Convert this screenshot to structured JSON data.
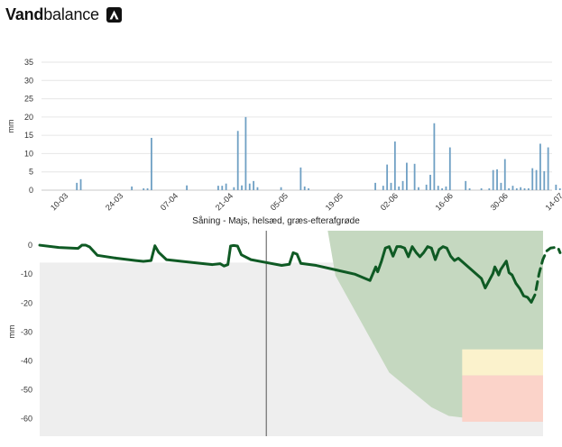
{
  "header": {
    "title_bold": "Vand",
    "title_rest": "balance",
    "logo_icon": "mountain-logo-icon"
  },
  "colors": {
    "bars": "#6fa0c4",
    "water_line": "#0f5a24",
    "forecast_zone": "#c5d8c0",
    "below_zone": "#eeeeee",
    "warning_yellow": "#fbf2cc",
    "critical_red": "#fbd3c9",
    "today_line": "#555555"
  },
  "chart_data": [
    {
      "type": "bar",
      "ylabel": "mm",
      "ylim": [
        0,
        35
      ],
      "yticks": [
        0,
        5,
        10,
        15,
        20,
        25,
        30,
        35
      ],
      "grid": true,
      "xlim": [
        -5,
        125
      ],
      "xticks": [
        {
          "day": 0,
          "label": "10-03"
        },
        {
          "day": 14,
          "label": "24-03"
        },
        {
          "day": 28,
          "label": "07-04"
        },
        {
          "day": 42,
          "label": "21-04"
        },
        {
          "day": 56,
          "label": "05-05"
        },
        {
          "day": 70,
          "label": "19-05"
        },
        {
          "day": 84,
          "label": "02-06"
        },
        {
          "day": 98,
          "label": "16-06"
        },
        {
          "day": 112,
          "label": "30-06"
        },
        {
          "day": 126,
          "label": "14-07"
        }
      ],
      "bars": [
        {
          "day": 4,
          "value": 2
        },
        {
          "day": 5,
          "value": 3
        },
        {
          "day": 18,
          "value": 1
        },
        {
          "day": 21,
          "value": 0.5
        },
        {
          "day": 22,
          "value": 0.5
        },
        {
          "day": 23,
          "value": 14.3
        },
        {
          "day": 32,
          "value": 1.3
        },
        {
          "day": 40,
          "value": 1.2
        },
        {
          "day": 41,
          "value": 1.2
        },
        {
          "day": 42,
          "value": 1.8
        },
        {
          "day": 44,
          "value": 0.8
        },
        {
          "day": 45,
          "value": 16.2
        },
        {
          "day": 46,
          "value": 1.3
        },
        {
          "day": 47,
          "value": 20
        },
        {
          "day": 48,
          "value": 1.8
        },
        {
          "day": 49,
          "value": 2.5
        },
        {
          "day": 50,
          "value": 0.8
        },
        {
          "day": 56,
          "value": 0.8
        },
        {
          "day": 61,
          "value": 6.2
        },
        {
          "day": 62,
          "value": 1.0
        },
        {
          "day": 63,
          "value": 0.5
        },
        {
          "day": 80,
          "value": 2
        },
        {
          "day": 82,
          "value": 1.2
        },
        {
          "day": 83,
          "value": 7
        },
        {
          "day": 84,
          "value": 2
        },
        {
          "day": 85,
          "value": 13.3
        },
        {
          "day": 86,
          "value": 1.0
        },
        {
          "day": 87,
          "value": 2.5
        },
        {
          "day": 88,
          "value": 7.5
        },
        {
          "day": 90,
          "value": 7.2
        },
        {
          "day": 91,
          "value": 0.8
        },
        {
          "day": 93,
          "value": 1.5
        },
        {
          "day": 94,
          "value": 4.2
        },
        {
          "day": 95,
          "value": 18.3
        },
        {
          "day": 96,
          "value": 1.2
        },
        {
          "day": 97,
          "value": 0.5
        },
        {
          "day": 98,
          "value": 1.0
        },
        {
          "day": 99,
          "value": 11.7
        },
        {
          "day": 103,
          "value": 2.5
        },
        {
          "day": 104,
          "value": 0.5
        },
        {
          "day": 107,
          "value": 0.5
        },
        {
          "day": 109,
          "value": 0.5
        },
        {
          "day": 110,
          "value": 5.5
        },
        {
          "day": 111,
          "value": 5.7
        },
        {
          "day": 112,
          "value": 2
        },
        {
          "day": 113,
          "value": 8.5
        },
        {
          "day": 114,
          "value": 0.5
        },
        {
          "day": 115,
          "value": 1.2
        },
        {
          "day": 116,
          "value": 0.5
        },
        {
          "day": 117,
          "value": 0.8
        },
        {
          "day": 118,
          "value": 0.5
        },
        {
          "day": 119,
          "value": 0.5
        },
        {
          "day": 120,
          "value": 6
        },
        {
          "day": 121,
          "value": 5.5
        },
        {
          "day": 122,
          "value": 12.7
        },
        {
          "day": 123,
          "value": 5.2
        },
        {
          "day": 124,
          "value": 11.7
        },
        {
          "day": 126,
          "value": 1.5
        },
        {
          "day": 127,
          "value": 0.5
        }
      ]
    },
    {
      "type": "area",
      "title": "Såning - Majs,  helsæd, græs-efterafgrøde",
      "ylabel": "mm",
      "ylim": [
        -66,
        5
      ],
      "yticks": [
        0,
        -10,
        -20,
        -30,
        -40,
        -50,
        -60
      ],
      "xlim": [
        -5,
        127
      ],
      "today_day": 54,
      "below_zone_top": -6,
      "series": [
        {
          "name": "",
          "style": "solid",
          "points": [
            [
              -5,
              0
            ],
            [
              0,
              -0.8
            ],
            [
              5,
              -1.1
            ],
            [
              6,
              0
            ],
            [
              7,
              0
            ],
            [
              8,
              -0.6
            ],
            [
              10,
              -3.5
            ],
            [
              15,
              -4.5
            ],
            [
              20,
              -5.3
            ],
            [
              22,
              -5.6
            ],
            [
              24,
              -5.3
            ],
            [
              25,
              -0.2
            ],
            [
              26,
              -2.5
            ],
            [
              28,
              -5
            ],
            [
              35,
              -6
            ],
            [
              40,
              -6.7
            ],
            [
              42,
              -6.4
            ],
            [
              43,
              -7.2
            ],
            [
              44,
              -6.7
            ],
            [
              44.7,
              -0.3
            ],
            [
              45.5,
              -0.1
            ],
            [
              46.5,
              -0.3
            ],
            [
              47.5,
              -3.3
            ],
            [
              50,
              -5
            ],
            [
              54,
              -6
            ],
            [
              58,
              -7
            ],
            [
              60,
              -6.6
            ],
            [
              61,
              -2.6
            ],
            [
              62,
              -3.1
            ],
            [
              63,
              -6.3
            ],
            [
              67,
              -7
            ],
            [
              72,
              -8.5
            ],
            [
              77,
              -10
            ],
            [
              81,
              -12.2
            ],
            [
              82.5,
              -7.5
            ],
            [
              83,
              -9.2
            ],
            [
              84,
              -5.5
            ],
            [
              85,
              -1
            ],
            [
              86,
              -0.5
            ],
            [
              87,
              -3.8
            ],
            [
              88,
              -0.5
            ],
            [
              89,
              -0.5
            ],
            [
              90,
              -1
            ],
            [
              91,
              -4
            ],
            [
              92,
              -0.5
            ],
            [
              93,
              -2.5
            ],
            [
              94,
              -4
            ],
            [
              95,
              -2.5
            ],
            [
              96,
              -0.5
            ],
            [
              97,
              -1
            ],
            [
              98,
              -5
            ],
            [
              99,
              -1.5
            ],
            [
              100,
              -0.5
            ],
            [
              101,
              -1
            ],
            [
              102,
              -3.8
            ],
            [
              103,
              -5.3
            ],
            [
              104,
              -4.5
            ],
            [
              107,
              -8
            ],
            [
              110,
              -11.5
            ],
            [
              111,
              -14.8
            ],
            [
              113,
              -9.8
            ],
            [
              113.5,
              -7.5
            ],
            [
              114,
              -8.8
            ],
            [
              114.5,
              -10.3
            ],
            [
              115,
              -8.5
            ],
            [
              116.5,
              -5.5
            ],
            [
              117.2,
              -9.5
            ],
            [
              118,
              -10.3
            ],
            [
              119,
              -13.2
            ],
            [
              120,
              -15
            ],
            [
              121,
              -17.5
            ],
            [
              122,
              -18
            ],
            [
              123,
              -19.7
            ]
          ]
        },
        {
          "name": "",
          "style": "dashed",
          "points": [
            [
              123,
              -19.7
            ],
            [
              124,
              -17
            ],
            [
              125,
              -10
            ],
            [
              126,
              -5
            ],
            [
              127,
              -2
            ],
            [
              128,
              -1
            ],
            [
              129,
              -0.8
            ],
            [
              130,
              -1
            ],
            [
              130.5,
              -2.6
            ]
          ]
        }
      ]
    }
  ],
  "zones": {
    "forecast_polygon": [
      [
        70,
        5
      ],
      [
        131,
        5
      ],
      [
        131,
        -61
      ],
      [
        114,
        -61
      ],
      [
        101.5,
        -59
      ],
      [
        97,
        -56
      ],
      [
        86,
        -44
      ],
      [
        72,
        -10.5
      ]
    ],
    "warning_band": {
      "x_from": 105,
      "x_to": 131,
      "y_from": -36,
      "y_to": -45
    },
    "critical_band": {
      "x_from": 105,
      "x_to": 131,
      "y_from": -45,
      "y_to": -61
    }
  }
}
